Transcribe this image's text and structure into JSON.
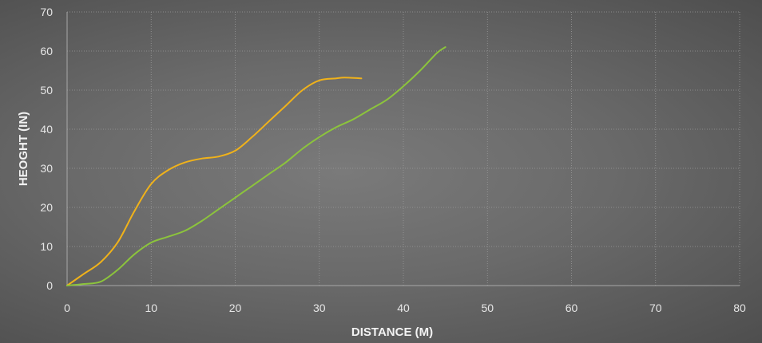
{
  "chart_data": {
    "type": "line",
    "title": "",
    "xlabel": "DISTANCE (M)",
    "ylabel": "HEOGHT (IN)",
    "xlim": [
      0,
      80
    ],
    "ylim": [
      0,
      70
    ],
    "x_ticks": [
      "0",
      "10",
      "20",
      "30",
      "40",
      "50",
      "60",
      "70",
      "80"
    ],
    "y_ticks": [
      "0",
      "10",
      "20",
      "30",
      "40",
      "50",
      "60",
      "70"
    ],
    "grid": true,
    "legend": "none",
    "series": [
      {
        "color": "#f0b21a",
        "points": [
          [
            0,
            0
          ],
          [
            2,
            3
          ],
          [
            4,
            6
          ],
          [
            6,
            11
          ],
          [
            8,
            19
          ],
          [
            10,
            26
          ],
          [
            12,
            29.5
          ],
          [
            14,
            31.5
          ],
          [
            16,
            32.5
          ],
          [
            18,
            33
          ],
          [
            20,
            34.5
          ],
          [
            22,
            38
          ],
          [
            24,
            42
          ],
          [
            26,
            46
          ],
          [
            28,
            50
          ],
          [
            30,
            52.5
          ],
          [
            32,
            53
          ],
          [
            33,
            53.2
          ],
          [
            35,
            53
          ]
        ]
      },
      {
        "color": "#8cc43c",
        "points": [
          [
            0,
            0
          ],
          [
            2,
            0.4
          ],
          [
            4,
            1
          ],
          [
            6,
            4
          ],
          [
            8,
            8
          ],
          [
            10,
            11
          ],
          [
            12,
            12.5
          ],
          [
            14,
            14
          ],
          [
            16,
            16.5
          ],
          [
            18,
            19.5
          ],
          [
            20,
            22.5
          ],
          [
            22,
            25.5
          ],
          [
            24,
            28.5
          ],
          [
            26,
            31.5
          ],
          [
            28,
            35
          ],
          [
            30,
            38
          ],
          [
            32,
            40.5
          ],
          [
            34,
            42.5
          ],
          [
            36,
            45
          ],
          [
            38,
            47.5
          ],
          [
            40,
            51
          ],
          [
            42,
            55
          ],
          [
            44,
            59.5
          ],
          [
            45,
            61
          ]
        ]
      }
    ]
  }
}
